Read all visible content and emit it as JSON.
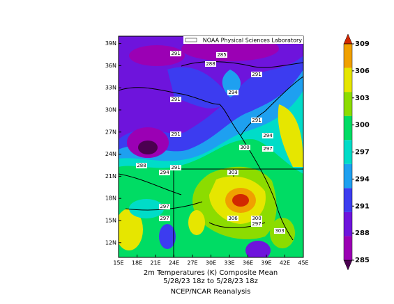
{
  "banner": "NOAA Physical Sciences Laboratory",
  "map": {
    "xlim": [
      15,
      45
    ],
    "ylim": [
      10,
      40
    ],
    "xticks": [
      {
        "value": 15,
        "label": "15E"
      },
      {
        "value": 18,
        "label": "18E"
      },
      {
        "value": 21,
        "label": "21E"
      },
      {
        "value": 24,
        "label": "24E"
      },
      {
        "value": 27,
        "label": "27E"
      },
      {
        "value": 30,
        "label": "30E"
      },
      {
        "value": 33,
        "label": "33E"
      },
      {
        "value": 36,
        "label": "36E"
      },
      {
        "value": 39,
        "label": "39E"
      },
      {
        "value": 42,
        "label": "42E"
      },
      {
        "value": 45,
        "label": "45E"
      }
    ],
    "yticks": [
      {
        "value": 12,
        "label": "12N"
      },
      {
        "value": 15,
        "label": "15N"
      },
      {
        "value": 18,
        "label": "18N"
      },
      {
        "value": 21,
        "label": "21N"
      },
      {
        "value": 24,
        "label": "24N"
      },
      {
        "value": 27,
        "label": "27N"
      },
      {
        "value": 30,
        "label": "30N"
      },
      {
        "value": 33,
        "label": "33N"
      },
      {
        "value": 36,
        "label": "36N"
      },
      {
        "value": 39,
        "label": "39N"
      }
    ],
    "contour_labels": [
      291,
      285,
      288,
      291,
      294,
      291,
      291,
      291,
      294,
      300,
      297,
      291,
      288,
      294,
      303,
      297,
      297,
      306,
      300,
      297,
      303
    ]
  },
  "colorbar": {
    "ylim": [
      285,
      309
    ],
    "ticks": [
      285,
      288,
      291,
      294,
      297,
      300,
      303,
      306,
      309
    ],
    "colors": [
      "#4b0050",
      "#9b00b4",
      "#6e14dc",
      "#3c3cf0",
      "#1ea0f0",
      "#00dcc8",
      "#00dc64",
      "#8cdc00",
      "#e6e600",
      "#f0a000",
      "#d22800"
    ]
  },
  "caption": [
    "2m Temperatures (K)   Composite Mean",
    "5/28/23 18z  to 5/28/23 18z",
    "NCEP/NCAR Reanalysis"
  ]
}
